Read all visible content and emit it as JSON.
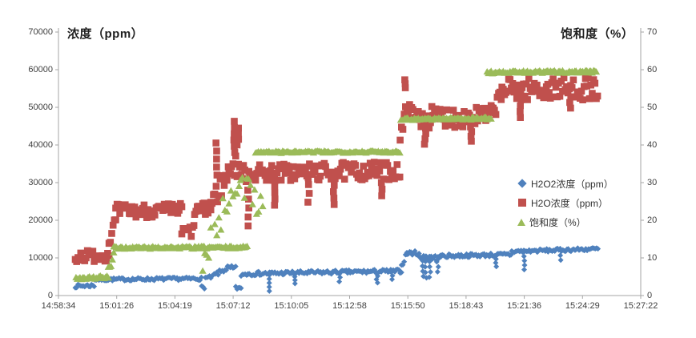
{
  "chart_data": {
    "type": "scatter",
    "ylabel_left": "浓度（ppm）",
    "ylabel_right": "饱和度（%）",
    "grid": "off",
    "legend_position": "middle-right",
    "x_axis": {
      "range_seconds": [
        0,
        1728
      ],
      "tick_seconds": [
        0,
        172.8,
        345.6,
        518.4,
        691.2,
        864,
        1036.8,
        1209.6,
        1382.4,
        1555.2,
        1728
      ],
      "tick_labels": [
        "14:58:34",
        "15:01:26",
        "15:04:19",
        "15:07:12",
        "15:10:05",
        "15:12:58",
        "15:15:50",
        "15:18:43",
        "15:21:36",
        "15:24:29",
        "15:27:22"
      ]
    },
    "y_left": {
      "min": 0,
      "max": 70000,
      "tick_labels": [
        "0",
        "10000",
        "20000",
        "30000",
        "40000",
        "50000",
        "60000",
        "70000"
      ]
    },
    "y_right": {
      "min": 0,
      "max": 70,
      "tick_labels": [
        "0",
        "10",
        "20",
        "30",
        "40",
        "50",
        "60",
        "70"
      ]
    },
    "plateau_summary": {
      "h2o2_levels_ppm": [
        2500,
        4300,
        6000,
        11300,
        12300
      ],
      "h2o_levels_ppm": [
        10500,
        22500,
        33000,
        47500,
        55000
      ],
      "saturation_levels_pct": [
        5,
        13,
        38,
        47,
        59.5
      ]
    },
    "series": [
      {
        "id": "h2o2",
        "name": "H2O2浓度（ppm）",
        "marker": "diamond",
        "color": "#4F81BD",
        "axis": "left",
        "segments": [
          [
            50,
            108,
            2500,
            2700,
            450
          ],
          [
            108,
            425,
            4250,
            4500,
            400
          ],
          [
            425,
            436,
            2300,
            2100,
            350
          ],
          [
            436,
            458,
            4700,
            4900,
            400
          ],
          [
            458,
            502,
            5200,
            7300,
            620
          ],
          [
            502,
            526,
            7300,
            7100,
            700
          ],
          [
            526,
            542,
            2400,
            1400,
            800
          ],
          [
            542,
            562,
            5500,
            5800,
            500
          ],
          [
            562,
            1018,
            5800,
            6500,
            520
          ],
          [
            1018,
            1034,
            7800,
            11200,
            600
          ],
          [
            1034,
            1070,
            11300,
            11300,
            550
          ],
          [
            1070,
            1135,
            9900,
            10100,
            750
          ],
          [
            1135,
            1345,
            10500,
            10900,
            480
          ],
          [
            1345,
            1602,
            11700,
            12400,
            430
          ]
        ],
        "spikes": [
          [
            625,
            5500,
            1200,
            5
          ],
          [
            700,
            5900,
            3200,
            4
          ],
          [
            835,
            6000,
            3700,
            3
          ],
          [
            945,
            6100,
            3400,
            4
          ],
          [
            990,
            6200,
            4300,
            3
          ],
          [
            1082,
            10600,
            5100,
            5
          ],
          [
            1090,
            10500,
            4700,
            5
          ],
          [
            1103,
            10400,
            4900,
            5
          ],
          [
            1125,
            10300,
            6300,
            4
          ],
          [
            1298,
            10700,
            7700,
            4
          ],
          [
            1382,
            11600,
            6900,
            5
          ],
          [
            1490,
            11900,
            9400,
            3
          ]
        ]
      },
      {
        "id": "h2o",
        "name": "H2O浓度（ppm）",
        "marker": "square",
        "color": "#C0504D",
        "axis": "left",
        "segments": [
          [
            50,
            150,
            10400,
            10800,
            1600
          ],
          [
            150,
            170,
            14500,
            20000,
            1600
          ],
          [
            170,
            366,
            22400,
            22700,
            1900
          ],
          [
            366,
            404,
            16900,
            17200,
            1700
          ],
          [
            404,
            452,
            22700,
            22900,
            1800
          ],
          [
            452,
            506,
            24500,
            32500,
            3200
          ],
          [
            506,
            545,
            34500,
            34000,
            3000
          ],
          [
            545,
            1014,
            32500,
            33200,
            2400
          ],
          [
            1014,
            1044,
            41000,
            54000,
            2600
          ],
          [
            1044,
            1286,
            47300,
            47600,
            2900
          ],
          [
            1286,
            1316,
            48500,
            53500,
            2400
          ],
          [
            1316,
            1602,
            54800,
            55000,
            3000
          ]
        ],
        "spikes": [
          [
            468,
            32000,
            40500,
            5
          ],
          [
            521,
            38000,
            46300,
            6
          ],
          [
            532,
            40000,
            44500,
            4
          ],
          [
            563,
            28000,
            18500,
            5
          ],
          [
            642,
            29000,
            24000,
            4
          ],
          [
            742,
            29500,
            24800,
            3
          ],
          [
            818,
            29300,
            24200,
            4
          ],
          [
            958,
            30000,
            26500,
            3
          ],
          [
            1028,
            55200,
            57300,
            3
          ],
          [
            1088,
            44500,
            40200,
            4
          ],
          [
            1224,
            44800,
            41000,
            4
          ],
          [
            1371,
            52000,
            47300,
            4
          ],
          [
            1520,
            52800,
            49800,
            3
          ]
        ]
      },
      {
        "id": "saturation",
        "name": "饱和度（%）",
        "marker": "triangle",
        "color": "#9BBB59",
        "axis": "right",
        "segments": [
          [
            52,
            148,
            4.8,
            5.0,
            0.5
          ],
          [
            148,
            164,
            6.5,
            10.5,
            1.3
          ],
          [
            164,
            560,
            12.8,
            12.9,
            0.35
          ],
          [
            428,
            540,
            10,
            33,
            4,
            6
          ],
          [
            540,
            610,
            28,
            26,
            5,
            6
          ],
          [
            585,
            1016,
            38.2,
            38.3,
            0.3
          ],
          [
            1016,
            1284,
            47.0,
            47.2,
            0.35
          ],
          [
            1272,
            1597,
            59.4,
            59.6,
            0.35
          ]
        ],
        "spikes": []
      }
    ]
  }
}
